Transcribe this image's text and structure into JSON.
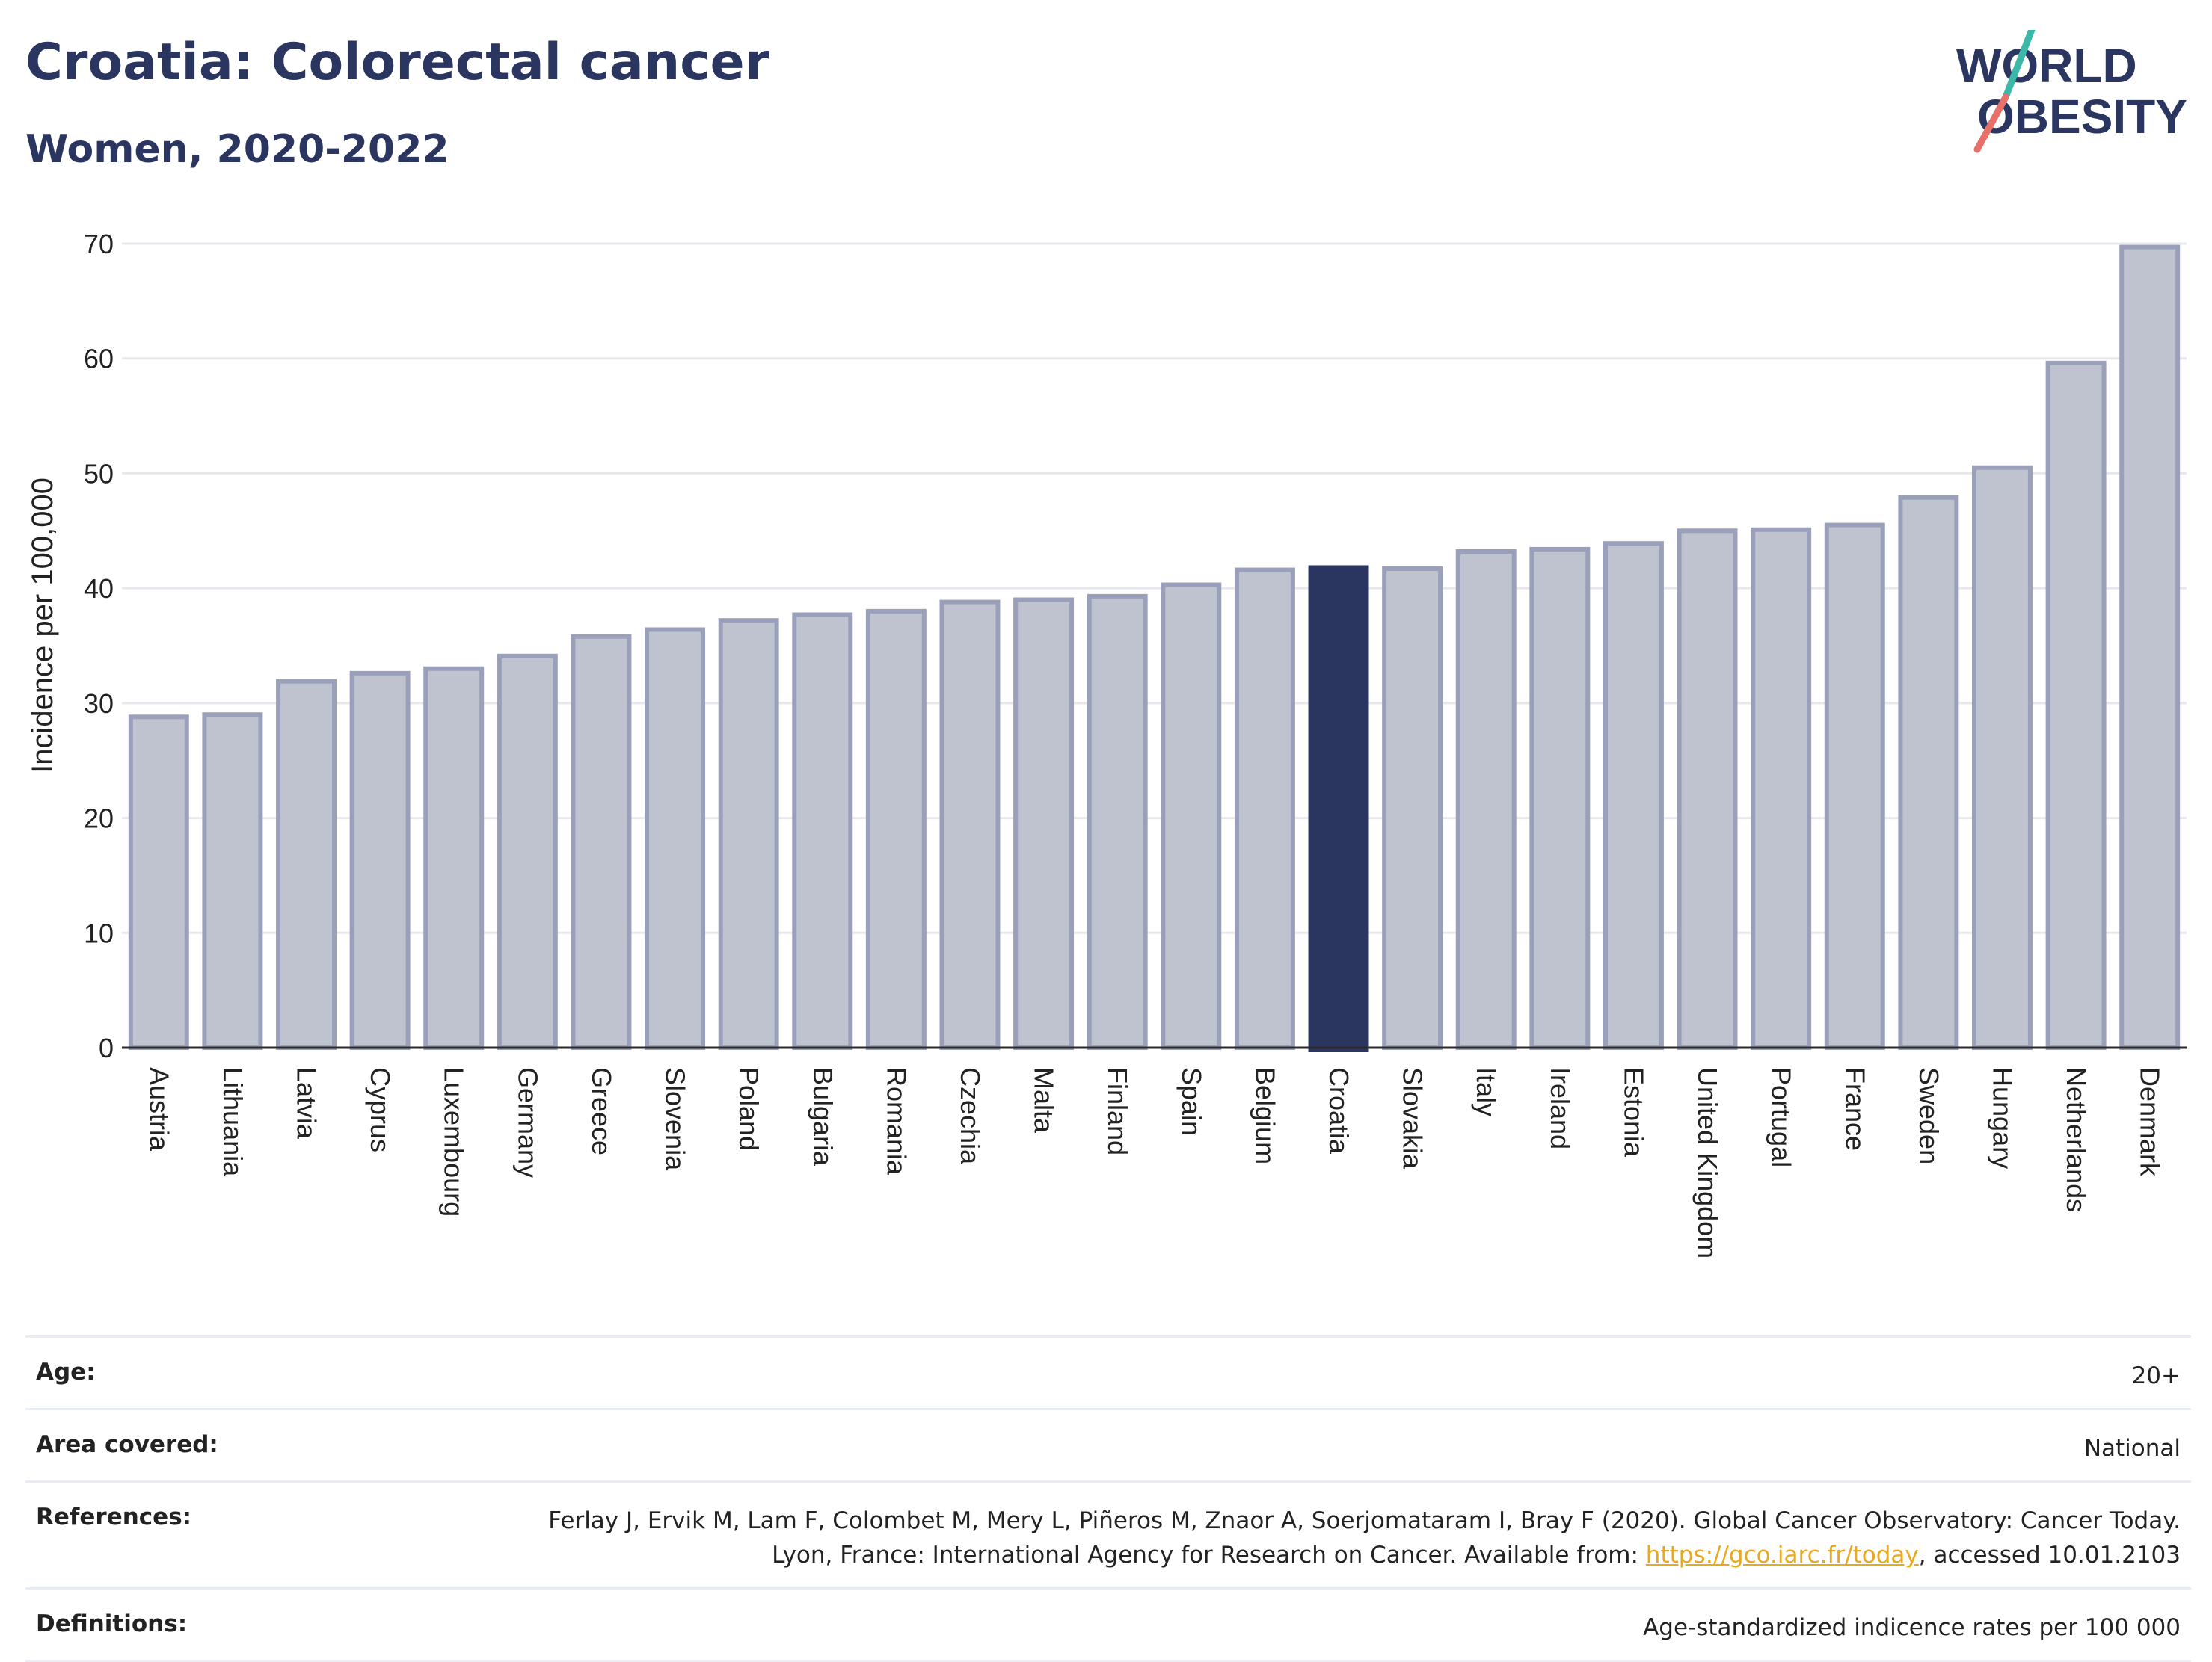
{
  "header": {
    "title": "Croatia: Colorectal cancer",
    "subtitle": "Women, 2020-2022"
  },
  "logo": {
    "line1": "WORLD",
    "line2": "OBESITY",
    "colors": {
      "text": "#2a3560",
      "slash_top": "#3bb8a8",
      "slash_bottom": "#e8706a"
    }
  },
  "chart_data": {
    "type": "bar",
    "ylabel": "Incidence per 100,000",
    "ylim": [
      0,
      70
    ],
    "yticks": [
      0,
      10,
      20,
      30,
      40,
      50,
      60,
      70
    ],
    "grid": true,
    "highlight": "Croatia",
    "colors": {
      "bar": "#bfc2cf",
      "bar_edge": "#9aa0b9",
      "highlight": "#2a3560"
    },
    "categories": [
      "Austria",
      "Lithuania",
      "Latvia",
      "Cyprus",
      "Luxembourg",
      "Germany",
      "Greece",
      "Slovenia",
      "Poland",
      "Bulgaria",
      "Romania",
      "Czechia",
      "Malta",
      "Finland",
      "Spain",
      "Belgium",
      "Croatia",
      "Slovakia",
      "Italy",
      "Ireland",
      "Estonia",
      "United Kingdom",
      "Portugal",
      "France",
      "Sweden",
      "Hungary",
      "Netherlands",
      "Denmark"
    ],
    "values": [
      28.8,
      29.0,
      31.9,
      32.6,
      33.0,
      34.1,
      35.8,
      36.4,
      37.2,
      37.7,
      38.0,
      38.8,
      39.0,
      39.3,
      40.3,
      41.6,
      41.8,
      41.7,
      43.2,
      43.4,
      43.9,
      45.0,
      45.1,
      45.5,
      47.9,
      50.5,
      59.6,
      69.7
    ]
  },
  "info": {
    "age_label": "Age:",
    "age_value": "20+",
    "area_label": "Area covered:",
    "area_value": "National",
    "references_label": "References:",
    "references_text": "Ferlay J, Ervik M, Lam F, Colombet M, Mery L, Piñeros M, Znaor A, Soerjomataram I, Bray F (2020). Global Cancer Observatory: Cancer Today. Lyon, France: International Agency for Research on Cancer. Available from:",
    "references_link": "https://gco.iarc.fr/today",
    "references_suffix": ", accessed 10.01.2103",
    "definitions_label": "Definitions:",
    "definitions_value": "Age-standardized indicence rates per 100 000"
  }
}
